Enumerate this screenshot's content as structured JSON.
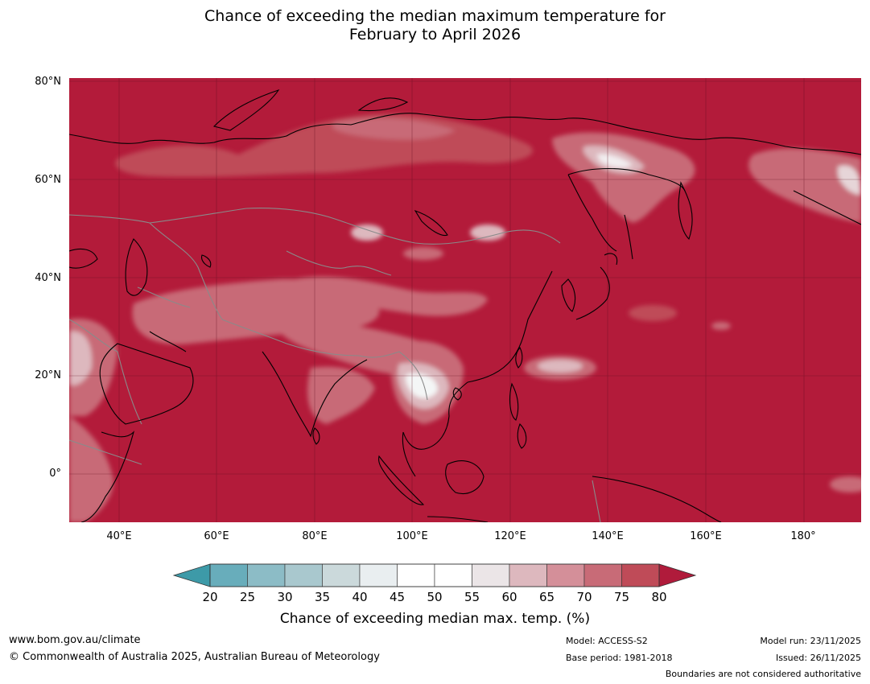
{
  "title": {
    "line1": "Chance of exceeding the median maximum temperature for",
    "line2": "February to April 2026"
  },
  "map": {
    "background_color": "#b31b3a",
    "latitude_labels": [
      "80°N",
      "60°N",
      "40°N",
      "20°N",
      "0°"
    ],
    "longitude_labels": [
      "40°E",
      "60°E",
      "80°E",
      "100°E",
      "120°E",
      "140°E",
      "160°E",
      "180°"
    ]
  },
  "colorbar": {
    "ticks": [
      "20",
      "25",
      "30",
      "35",
      "40",
      "45",
      "50",
      "55",
      "60",
      "65",
      "70",
      "75",
      "80"
    ],
    "colors": [
      "#3d9aa8",
      "#68adbb",
      "#8cbcc6",
      "#a9c8ce",
      "#cbd9db",
      "#e9eef0",
      "#ffffff",
      "#ffffff",
      "#ebe5e7",
      "#ddb8be",
      "#d48f99",
      "#c86b77",
      "#bf4b58",
      "#b01b3b"
    ],
    "label": "Chance of exceeding median max. temp. (%)"
  },
  "footer": {
    "website": "www.bom.gov.au/climate",
    "copyright": "© Commonwealth of Australia 2025, Australian Bureau of Meteorology",
    "model": "Model: ACCESS-S2",
    "base_period": "Base period: 1981-2018",
    "model_run": "Model run: 23/11/2025",
    "issued": "Issued: 26/11/2025",
    "disclaimer": "Boundaries are not considered authoritative"
  }
}
